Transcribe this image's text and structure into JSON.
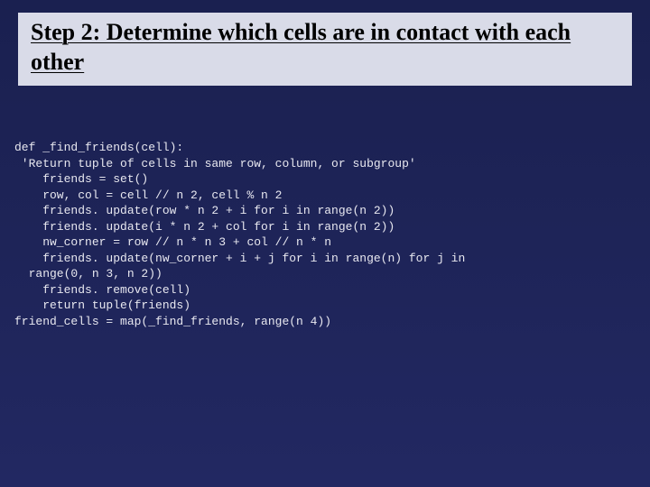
{
  "slide": {
    "title": "Step 2:  Determine which cells are in contact with each other",
    "background_gradient_top": "#1a2050",
    "background_gradient_mid": "#1e2458",
    "background_gradient_bottom": "#222862",
    "title_bar_bg": "#d9dbe8",
    "title_color": "#000000",
    "title_fontsize": 26,
    "title_font": "Times New Roman",
    "code_color": "#e8e8f0",
    "code_font": "Courier New",
    "code_fontsize": 13
  },
  "code": {
    "l1": "def _find_friends(cell):",
    "l2": " 'Return tuple of cells in same row, column, or subgroup'",
    "l3": "    friends = set()",
    "l4": "    row, col = cell // n 2, cell % n 2",
    "l5": "    friends. update(row * n 2 + i for i in range(n 2))",
    "l6": "    friends. update(i * n 2 + col for i in range(n 2))",
    "l7": "    nw_corner = row // n * n 3 + col // n * n",
    "l8": "    friends. update(nw_corner + i + j for i in range(n) for j in",
    "l9": "  range(0, n 3, n 2))",
    "l10": "    friends. remove(cell)",
    "l11": "    return tuple(friends)",
    "l12": "friend_cells = map(_find_friends, range(n 4))"
  }
}
